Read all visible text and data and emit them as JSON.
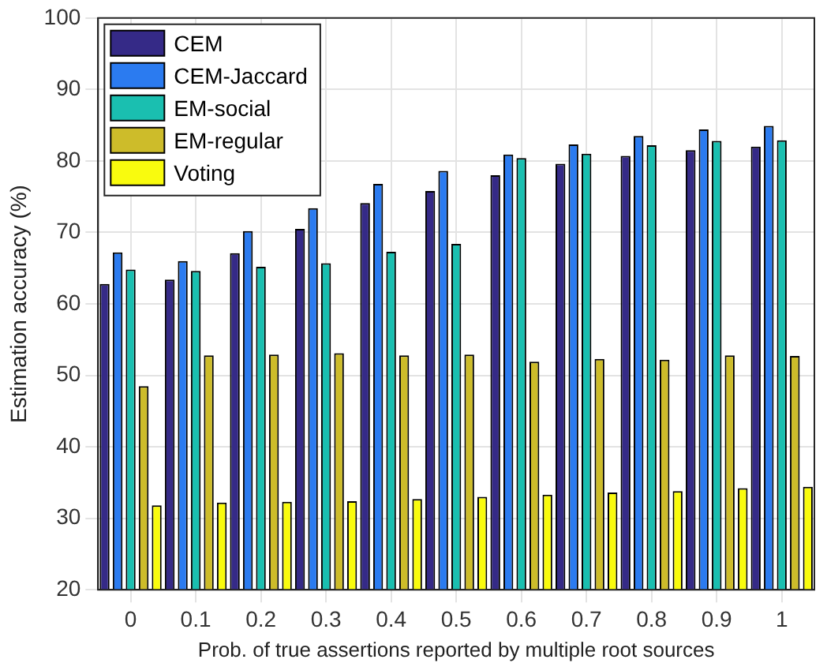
{
  "chart_data": {
    "type": "bar",
    "xlabel": "Prob. of true assertions reported by multiple root sources",
    "ylabel": "Estimation accuracy (%)",
    "categories": [
      "0",
      "0.1",
      "0.2",
      "0.3",
      "0.4",
      "0.5",
      "0.6",
      "0.7",
      "0.8",
      "0.9",
      "1"
    ],
    "series": [
      {
        "name": "CEM",
        "color": "#352a87",
        "values": [
          62.8,
          63.4,
          67.1,
          70.5,
          74.1,
          75.8,
          78.0,
          79.6,
          80.7,
          81.5,
          82.0
        ]
      },
      {
        "name": "CEM-Jaccard",
        "color": "#2b7bf0",
        "values": [
          67.2,
          66.0,
          70.2,
          73.4,
          76.8,
          78.6,
          80.9,
          82.3,
          83.5,
          84.4,
          84.9
        ]
      },
      {
        "name": "EM-social",
        "color": "#1abfb0",
        "values": [
          64.8,
          64.6,
          65.2,
          65.7,
          67.3,
          68.4,
          80.4,
          81.0,
          82.2,
          82.8,
          82.9
        ]
      },
      {
        "name": "EM-regular",
        "color": "#cdbc2a",
        "values": [
          48.5,
          52.8,
          52.9,
          53.1,
          52.8,
          52.9,
          51.9,
          52.3,
          52.2,
          52.8,
          52.7
        ]
      },
      {
        "name": "Voting",
        "color": "#f9fb0e",
        "values": [
          31.8,
          32.2,
          32.3,
          32.4,
          32.7,
          33.0,
          33.3,
          33.6,
          33.8,
          34.2,
          34.4
        ]
      }
    ],
    "ylim": [
      20,
      100
    ],
    "yticks": [
      20,
      30,
      40,
      50,
      60,
      70,
      80,
      90,
      100
    ],
    "grid": true,
    "legend": "top left"
  }
}
